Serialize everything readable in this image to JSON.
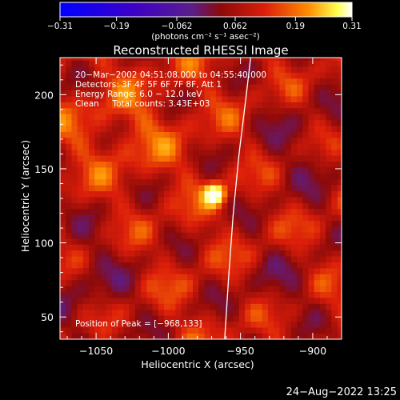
{
  "chart_data": {
    "type": "heatmap",
    "title": "Reconstructed RHESSI Image",
    "xlabel": "Heliocentric X (arcsec)",
    "ylabel": "Heliocentric Y (arcsec)",
    "xlim": [
      -1075,
      -880
    ],
    "ylim": [
      35,
      225
    ],
    "x_ticks": [
      -1050,
      -1000,
      -950,
      -900
    ],
    "x_tick_labels": [
      "−1050",
      "−1000",
      "−950",
      "−900"
    ],
    "y_ticks": [
      50,
      100,
      150,
      200
    ],
    "y_tick_labels": [
      "50",
      "100",
      "150",
      "200"
    ],
    "colorbar": {
      "range": [
        -0.31,
        0.31
      ],
      "tick_values": [
        -0.31,
        -0.19,
        -0.062,
        0.062,
        0.19,
        0.31
      ],
      "tick_labels": [
        "−0.31",
        "−0.19",
        "−0.062",
        "0.062",
        "0.19",
        "0.31"
      ],
      "unit_label": "(photons cm⁻² s⁻¹ asec⁻²)"
    },
    "info_lines": [
      "20−Mar−2002 04:51:08.000 to 04:55:40.000",
      "Detectors: 3F 4F 5F 6F 7F 8F, Att 1",
      "Energy Range: 6.0 − 12.0 keV",
      "Clean     Total counts: 3.43E+03"
    ],
    "peak_label": "Position of Peak = [−968,133]",
    "peak": {
      "x": -968,
      "y": 133,
      "value": 0.31
    },
    "limb_line": [
      {
        "x": -961,
        "y": 35
      },
      {
        "x": -958,
        "y": 80
      },
      {
        "x": -955,
        "y": 120
      },
      {
        "x": -951,
        "y": 160
      },
      {
        "x": -946,
        "y": 200
      },
      {
        "x": -943,
        "y": 225
      }
    ],
    "pixel_size_arcsec": 4,
    "colormap": [
      "#0000ff",
      "#3c00c8",
      "#5a1e8c",
      "#8c0a0a",
      "#dc1e0a",
      "#ff8c00",
      "#ffff50",
      "#ffffff"
    ],
    "timestamp": "24−Aug−2022 13:25"
  }
}
